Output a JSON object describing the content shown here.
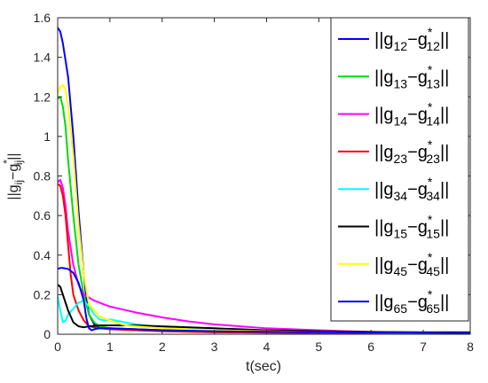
{
  "chart_data": {
    "type": "line",
    "xlabel": "t(sec)",
    "ylabel": {
      "main": "||g",
      "sub1": "ij",
      "minus": "−g",
      "sup": "*",
      "sub2": "ij",
      "end": "||"
    },
    "xlim": [
      0,
      7.9
    ],
    "ylim": [
      0,
      1.6
    ],
    "xticks": [
      0,
      1,
      2,
      3,
      4,
      5,
      6,
      7,
      8
    ],
    "yticks": [
      0,
      0.2,
      0.4,
      0.6,
      0.8,
      1,
      1.2,
      1.4,
      1.6
    ],
    "grid": false,
    "legend_position": "top-right",
    "series": [
      {
        "name": "||g12−g*12||",
        "sub": "12",
        "color": "#0000ff",
        "points": [
          [
            0,
            1.55
          ],
          [
            0.05,
            1.53
          ],
          [
            0.1,
            1.47
          ],
          [
            0.2,
            1.3
          ],
          [
            0.3,
            1.0
          ],
          [
            0.4,
            0.62
          ],
          [
            0.5,
            0.3
          ],
          [
            0.55,
            0.18
          ],
          [
            0.6,
            0.1
          ],
          [
            0.7,
            0.05
          ],
          [
            0.8,
            0.035
          ],
          [
            1.0,
            0.03
          ],
          [
            1.5,
            0.025
          ],
          [
            2,
            0.02
          ],
          [
            3,
            0.015
          ],
          [
            5,
            0.01
          ],
          [
            7.9,
            0.005
          ]
        ]
      },
      {
        "name": "||g13−g*13||",
        "sub": "13",
        "color": "#00dd00",
        "points": [
          [
            0,
            1.19
          ],
          [
            0.05,
            1.2
          ],
          [
            0.1,
            1.15
          ],
          [
            0.15,
            1.05
          ],
          [
            0.2,
            0.88
          ],
          [
            0.3,
            0.6
          ],
          [
            0.4,
            0.35
          ],
          [
            0.5,
            0.2
          ],
          [
            0.6,
            0.1
          ],
          [
            0.7,
            0.06
          ],
          [
            0.8,
            0.04
          ],
          [
            1.0,
            0.03
          ],
          [
            1.5,
            0.02
          ],
          [
            2,
            0.015
          ],
          [
            3,
            0.01
          ],
          [
            5,
            0.007
          ],
          [
            7.9,
            0.004
          ]
        ]
      },
      {
        "name": "||g14−g*14||",
        "sub": "14",
        "color": "#ff00ff",
        "points": [
          [
            0,
            0.77
          ],
          [
            0.05,
            0.78
          ],
          [
            0.1,
            0.74
          ],
          [
            0.15,
            0.65
          ],
          [
            0.2,
            0.52
          ],
          [
            0.3,
            0.35
          ],
          [
            0.4,
            0.25
          ],
          [
            0.5,
            0.2
          ],
          [
            0.7,
            0.17
          ],
          [
            1.0,
            0.14
          ],
          [
            1.5,
            0.11
          ],
          [
            2,
            0.085
          ],
          [
            2.5,
            0.065
          ],
          [
            3,
            0.05
          ],
          [
            3.5,
            0.04
          ],
          [
            4,
            0.03
          ],
          [
            5,
            0.02
          ],
          [
            6,
            0.012
          ],
          [
            7,
            0.008
          ],
          [
            7.9,
            0.006
          ]
        ]
      },
      {
        "name": "||g23−g*23||",
        "sub": "23",
        "color": "#ff0000",
        "points": [
          [
            0,
            0.76
          ],
          [
            0.05,
            0.75
          ],
          [
            0.1,
            0.7
          ],
          [
            0.15,
            0.6
          ],
          [
            0.2,
            0.45
          ],
          [
            0.25,
            0.3
          ],
          [
            0.3,
            0.2
          ],
          [
            0.4,
            0.12
          ],
          [
            0.5,
            0.07
          ],
          [
            0.6,
            0.04
          ],
          [
            0.8,
            0.03
          ],
          [
            1.0,
            0.025
          ],
          [
            1.5,
            0.02
          ],
          [
            2,
            0.015
          ],
          [
            3,
            0.01
          ],
          [
            5,
            0.006
          ],
          [
            7.9,
            0.004
          ]
        ]
      },
      {
        "name": "||g34−g*34||",
        "sub": "34",
        "color": "#00ffff",
        "points": [
          [
            0,
            0.19
          ],
          [
            0.05,
            0.12
          ],
          [
            0.1,
            0.06
          ],
          [
            0.15,
            0.07
          ],
          [
            0.2,
            0.1
          ],
          [
            0.3,
            0.13
          ],
          [
            0.4,
            0.16
          ],
          [
            0.5,
            0.17
          ],
          [
            0.6,
            0.14
          ],
          [
            0.7,
            0.1
          ],
          [
            0.8,
            0.075
          ],
          [
            0.9,
            0.07
          ],
          [
            1.0,
            0.075
          ],
          [
            1.2,
            0.065
          ],
          [
            1.5,
            0.05
          ],
          [
            2,
            0.035
          ],
          [
            3,
            0.02
          ],
          [
            5,
            0.01
          ],
          [
            7.9,
            0.005
          ]
        ]
      },
      {
        "name": "||g15−g*15||",
        "sub": "15",
        "color": "#000000",
        "points": [
          [
            0,
            0.25
          ],
          [
            0.05,
            0.24
          ],
          [
            0.1,
            0.2
          ],
          [
            0.2,
            0.12
          ],
          [
            0.3,
            0.06
          ],
          [
            0.4,
            0.04
          ],
          [
            0.5,
            0.035
          ],
          [
            0.6,
            0.04
          ],
          [
            0.8,
            0.045
          ],
          [
            1.0,
            0.045
          ],
          [
            1.5,
            0.045
          ],
          [
            2,
            0.04
          ],
          [
            3,
            0.03
          ],
          [
            4,
            0.02
          ],
          [
            5,
            0.015
          ],
          [
            6,
            0.012
          ],
          [
            7,
            0.01
          ],
          [
            7.9,
            0.01
          ]
        ]
      },
      {
        "name": "||g45−g*45||",
        "sub": "45",
        "color": "#ffff00",
        "points": [
          [
            0,
            1.22
          ],
          [
            0.05,
            1.25
          ],
          [
            0.1,
            1.26
          ],
          [
            0.15,
            1.24
          ],
          [
            0.2,
            1.15
          ],
          [
            0.3,
            0.9
          ],
          [
            0.4,
            0.55
          ],
          [
            0.5,
            0.3
          ],
          [
            0.6,
            0.15
          ],
          [
            0.8,
            0.09
          ],
          [
            1.0,
            0.07
          ],
          [
            1.1,
            0.06
          ],
          [
            1.3,
            0.045
          ],
          [
            1.5,
            0.04
          ],
          [
            2,
            0.03
          ],
          [
            3,
            0.02
          ],
          [
            5,
            0.01
          ],
          [
            7.9,
            0.006
          ]
        ]
      },
      {
        "name": "||g65−g*65||",
        "sub": "65",
        "color": "#0000ff",
        "points": [
          [
            0,
            0.33
          ],
          [
            0.05,
            0.335
          ],
          [
            0.1,
            0.335
          ],
          [
            0.2,
            0.33
          ],
          [
            0.3,
            0.31
          ],
          [
            0.4,
            0.26
          ],
          [
            0.5,
            0.17
          ],
          [
            0.55,
            0.08
          ],
          [
            0.6,
            0.03
          ],
          [
            0.65,
            0.02
          ],
          [
            0.7,
            0.025
          ],
          [
            0.8,
            0.03
          ],
          [
            1.0,
            0.03
          ],
          [
            1.5,
            0.025
          ],
          [
            2,
            0.02
          ],
          [
            3,
            0.015
          ],
          [
            5,
            0.01
          ],
          [
            7.9,
            0.006
          ]
        ]
      }
    ]
  }
}
